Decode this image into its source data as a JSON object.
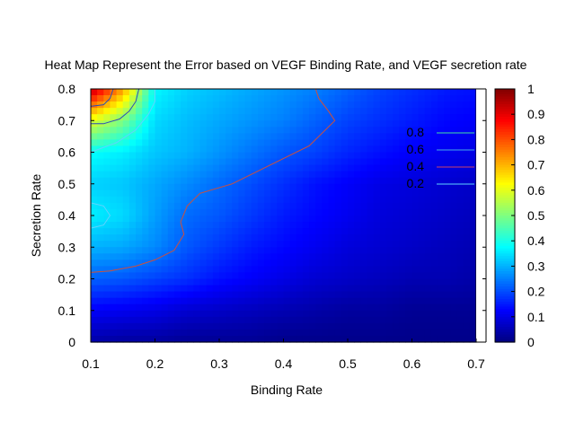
{
  "chart_data": {
    "type": "heatmap",
    "title": "Heat Map Represent the Error based on VEGF Binding Rate, and VEGF secretion rate",
    "xlabel": "Binding Rate",
    "ylabel": "Secretion Rate",
    "xlim": [
      0.1,
      0.7
    ],
    "ylim": [
      0,
      0.8
    ],
    "xticks": [
      "0.1",
      "0.2",
      "0.3",
      "0.4",
      "0.5",
      "0.6",
      "0.7"
    ],
    "yticks": [
      "0",
      "0.1",
      "0.2",
      "0.3",
      "0.4",
      "0.5",
      "0.6",
      "0.7",
      "0.8"
    ],
    "colorbar": {
      "range": [
        0,
        1
      ],
      "ticks": [
        "0",
        "0.1",
        "0.2",
        "0.3",
        "0.4",
        "0.5",
        "0.6",
        "0.7",
        "0.8",
        "0.9",
        "1"
      ],
      "colormap": "jet"
    },
    "x_grid": [
      0.1,
      0.15,
      0.2,
      0.25,
      0.3,
      0.35,
      0.4,
      0.45,
      0.5,
      0.55,
      0.6,
      0.65,
      0.7
    ],
    "y_grid": [
      0,
      0.1,
      0.2,
      0.3,
      0.4,
      0.5,
      0.6,
      0.7,
      0.8
    ],
    "z": [
      [
        0.04,
        0.03,
        0.03,
        0.02,
        0.02,
        0.02,
        0.01,
        0.01,
        0.01,
        0.01,
        0.01,
        0.01,
        0.01
      ],
      [
        0.12,
        0.11,
        0.1,
        0.08,
        0.07,
        0.06,
        0.05,
        0.04,
        0.03,
        0.03,
        0.02,
        0.02,
        0.02
      ],
      [
        0.22,
        0.21,
        0.19,
        0.17,
        0.14,
        0.12,
        0.1,
        0.08,
        0.07,
        0.06,
        0.05,
        0.05,
        0.04
      ],
      [
        0.3,
        0.29,
        0.26,
        0.21,
        0.18,
        0.15,
        0.13,
        0.11,
        0.09,
        0.08,
        0.07,
        0.06,
        0.05
      ],
      [
        0.36,
        0.34,
        0.28,
        0.23,
        0.21,
        0.18,
        0.15,
        0.13,
        0.11,
        0.09,
        0.08,
        0.07,
        0.06
      ],
      [
        0.33,
        0.32,
        0.29,
        0.26,
        0.23,
        0.2,
        0.17,
        0.14,
        0.12,
        0.1,
        0.09,
        0.08,
        0.07
      ],
      [
        0.38,
        0.36,
        0.32,
        0.3,
        0.27,
        0.24,
        0.21,
        0.19,
        0.16,
        0.14,
        0.12,
        0.11,
        0.1
      ],
      [
        0.6,
        0.5,
        0.34,
        0.31,
        0.29,
        0.27,
        0.25,
        0.22,
        0.19,
        0.17,
        0.15,
        0.13,
        0.12
      ],
      [
        0.95,
        0.72,
        0.37,
        0.33,
        0.31,
        0.29,
        0.27,
        0.25,
        0.22,
        0.19,
        0.17,
        0.15,
        0.14
      ]
    ],
    "contour_levels": [
      {
        "label": "0.8",
        "color": "#44e0a0"
      },
      {
        "label": "0.6",
        "color": "#44a8e8"
      },
      {
        "label": "0.4",
        "color": "#c84070"
      },
      {
        "label": "0.2",
        "color": "#5fd3ff"
      }
    ],
    "contours": [
      {
        "level": "0.4",
        "color": "#d0503a",
        "points": [
          [
            0.1,
            0.22
          ],
          [
            0.13,
            0.225
          ],
          [
            0.17,
            0.24
          ],
          [
            0.2,
            0.26
          ],
          [
            0.23,
            0.29
          ],
          [
            0.245,
            0.34
          ],
          [
            0.24,
            0.38
          ],
          [
            0.25,
            0.43
          ],
          [
            0.27,
            0.47
          ],
          [
            0.32,
            0.5
          ],
          [
            0.38,
            0.56
          ],
          [
            0.44,
            0.62
          ],
          [
            0.48,
            0.7
          ],
          [
            0.47,
            0.73
          ],
          [
            0.455,
            0.77
          ],
          [
            0.45,
            0.8
          ]
        ]
      },
      {
        "level": "0.6",
        "color": "#2b4bb8",
        "points": [
          [
            0.1,
            0.69
          ],
          [
            0.12,
            0.69
          ],
          [
            0.145,
            0.705
          ],
          [
            0.16,
            0.73
          ],
          [
            0.17,
            0.76
          ],
          [
            0.175,
            0.8
          ]
        ]
      },
      {
        "level": "0.6",
        "color": "#2b4bb8",
        "points": [
          [
            0.1,
            0.745
          ],
          [
            0.12,
            0.75
          ],
          [
            0.13,
            0.77
          ],
          [
            0.135,
            0.8
          ]
        ]
      },
      {
        "level": "0.2",
        "color": "#5fd3ff",
        "points": [
          [
            0.1,
            0.6
          ],
          [
            0.14,
            0.63
          ],
          [
            0.17,
            0.67
          ],
          [
            0.19,
            0.72
          ],
          [
            0.2,
            0.76
          ],
          [
            0.2,
            0.8
          ]
        ]
      },
      {
        "level": "0.2",
        "color": "#5fd3ff",
        "points": [
          [
            0.1,
            0.44
          ],
          [
            0.12,
            0.43
          ],
          [
            0.13,
            0.4
          ],
          [
            0.12,
            0.37
          ],
          [
            0.1,
            0.36
          ]
        ]
      }
    ]
  }
}
